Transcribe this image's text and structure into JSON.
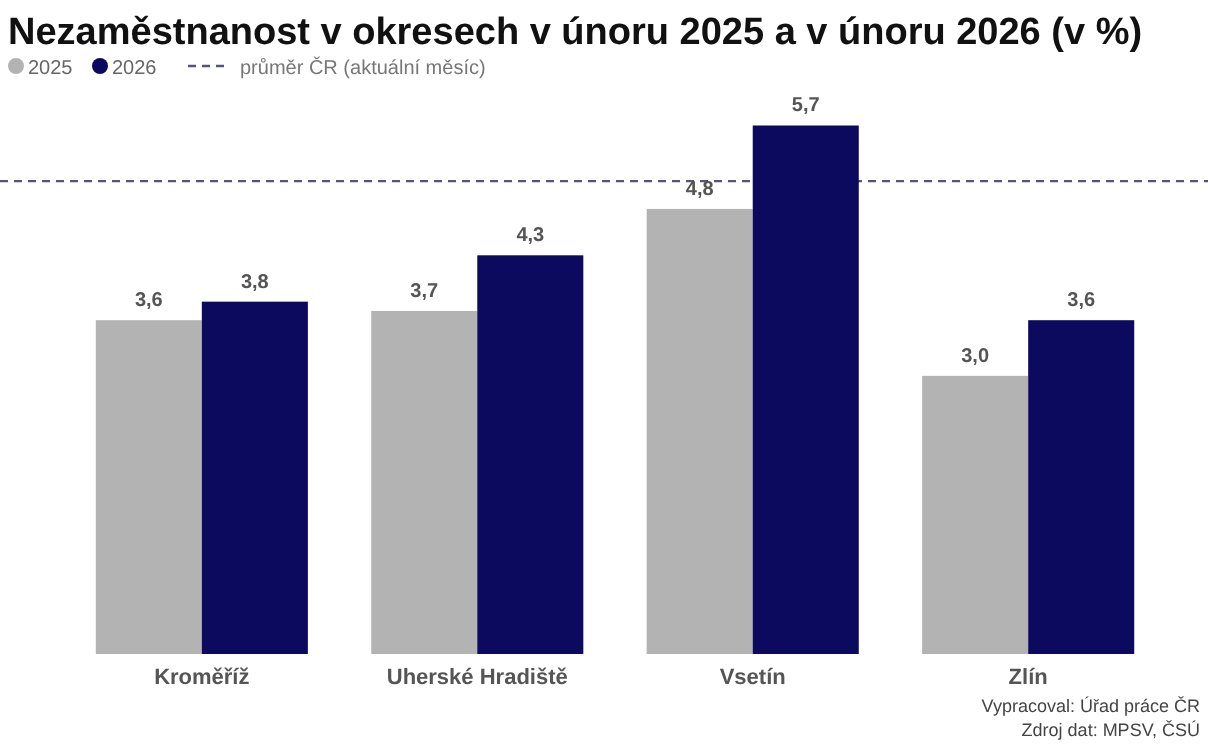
{
  "chart_data": {
    "type": "bar",
    "title": "Nezaměstnanost v okresech v únoru 2025 a v únoru 2026 (v %)",
    "categories": [
      "Kroměříž",
      "Uherské Hradiště",
      "Vsetín",
      "Zlín"
    ],
    "series": [
      {
        "name": "2025",
        "color": "#b3b3b3",
        "values": [
          3.6,
          3.7,
          4.8,
          3.0
        ],
        "value_labels": [
          "3,6",
          "3,7",
          "4,8",
          "3,0"
        ]
      },
      {
        "name": "2026",
        "color": "#0c0a5e",
        "values": [
          3.8,
          4.3,
          5.7,
          3.6
        ],
        "value_labels": [
          "3,8",
          "4,3",
          "5,7",
          "3,6"
        ]
      }
    ],
    "tick_labels": "x",
    "legend": "top left",
    "ref_lines": [
      {
        "axis": "y",
        "value": 5.1,
        "label": "průměr ČR (aktuální měsíc)",
        "color": "#55557a",
        "line_style": "dashed"
      }
    ],
    "annotations": [
      "Vypracoval: Úřad práce ČR",
      "Zdroj dat: MPSV, ČSÚ"
    ]
  }
}
